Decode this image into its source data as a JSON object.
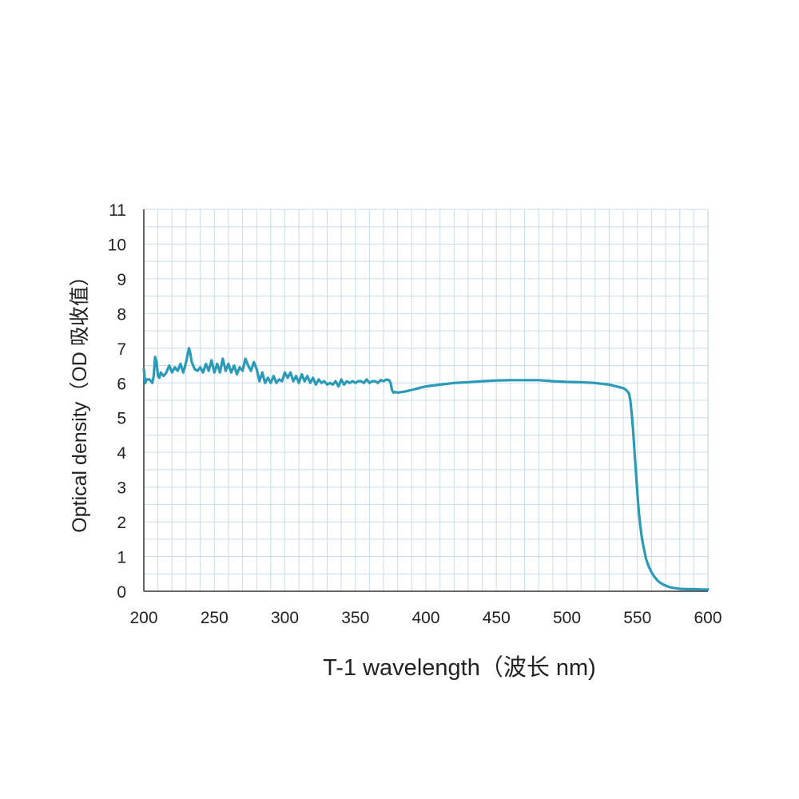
{
  "chart_data": {
    "type": "line",
    "xlabel": "T-1 wavelength（波长 nm)",
    "ylabel": "Optical density（OD 吸收值）",
    "xlim": [
      200,
      600
    ],
    "ylim": [
      0,
      11
    ],
    "xticks": [
      200,
      250,
      300,
      350,
      400,
      450,
      500,
      550,
      600
    ],
    "yticks": [
      0,
      1,
      2,
      3,
      4,
      5,
      6,
      7,
      8,
      9,
      10,
      11
    ],
    "grid": true,
    "colors": {
      "line": "#2a9ab8",
      "grid": "#c8dde8",
      "axis": "#333333"
    },
    "series": [
      {
        "x": [
          200,
          201,
          202,
          204,
          206,
          207,
          208,
          209,
          210,
          211,
          212,
          214,
          216,
          218,
          220,
          222,
          224,
          226,
          228,
          230,
          231,
          232,
          233,
          234,
          235,
          236,
          238,
          240,
          242,
          244,
          246,
          248,
          250,
          252,
          254,
          256,
          258,
          260,
          262,
          264,
          266,
          268,
          270,
          272,
          274,
          276,
          278,
          280,
          282,
          284,
          286,
          288,
          290,
          292,
          294,
          296,
          298,
          300,
          302,
          304,
          306,
          308,
          310,
          312,
          314,
          316,
          318,
          320,
          322,
          324,
          326,
          328,
          330,
          332,
          334,
          336,
          338,
          340,
          342,
          344,
          346,
          348,
          350,
          352,
          354,
          356,
          358,
          360,
          362,
          364,
          366,
          368,
          370,
          372,
          374,
          375,
          376,
          377,
          378,
          380,
          385,
          390,
          395,
          400,
          410,
          420,
          430,
          440,
          450,
          460,
          470,
          480,
          490,
          500,
          510,
          520,
          530,
          535,
          540,
          542,
          544,
          545,
          546,
          547,
          548,
          549,
          550,
          551,
          552,
          553,
          554,
          555,
          556,
          558,
          560,
          562,
          564,
          566,
          568,
          570,
          572,
          575,
          580,
          585,
          590,
          595,
          600
        ],
        "values": [
          6.4,
          6.0,
          6.1,
          6.1,
          6.0,
          6.2,
          6.75,
          6.6,
          6.2,
          6.15,
          6.3,
          6.2,
          6.3,
          6.5,
          6.3,
          6.45,
          6.35,
          6.55,
          6.3,
          6.6,
          6.8,
          7.0,
          6.85,
          6.6,
          6.5,
          6.4,
          6.35,
          6.45,
          6.3,
          6.55,
          6.35,
          6.65,
          6.3,
          6.55,
          6.3,
          6.7,
          6.35,
          6.55,
          6.3,
          6.5,
          6.25,
          6.45,
          6.35,
          6.7,
          6.5,
          6.35,
          6.6,
          6.4,
          6.05,
          6.3,
          6.0,
          6.15,
          6.0,
          6.2,
          6.0,
          6.1,
          6.05,
          6.3,
          6.15,
          6.3,
          6.05,
          6.2,
          6.0,
          6.25,
          6.05,
          6.2,
          6.0,
          6.15,
          5.95,
          6.1,
          6.0,
          6.05,
          5.95,
          6.0,
          5.95,
          6.05,
          5.9,
          6.1,
          5.95,
          6.05,
          6.0,
          6.05,
          6.0,
          6.05,
          6.05,
          6.0,
          6.1,
          6.0,
          6.05,
          6.05,
          6.0,
          6.08,
          6.05,
          6.1,
          6.08,
          6.0,
          5.8,
          5.72,
          5.74,
          5.72,
          5.75,
          5.8,
          5.85,
          5.9,
          5.95,
          6.0,
          6.02,
          6.05,
          6.07,
          6.08,
          6.08,
          6.08,
          6.05,
          6.03,
          6.02,
          6.0,
          5.95,
          5.9,
          5.85,
          5.8,
          5.7,
          5.5,
          5.1,
          4.6,
          4.0,
          3.4,
          2.8,
          2.3,
          1.9,
          1.6,
          1.35,
          1.15,
          0.95,
          0.72,
          0.55,
          0.42,
          0.32,
          0.25,
          0.2,
          0.16,
          0.13,
          0.1,
          0.07,
          0.06,
          0.06,
          0.05,
          0.05
        ]
      }
    ]
  }
}
